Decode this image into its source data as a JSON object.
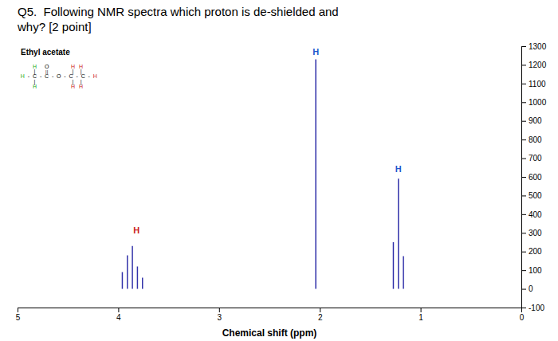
{
  "chart_data": {
    "type": "stem",
    "title": [
      "Q5.  Following NMR spectra which proton is de-shielded and",
      "why? [2 point]"
    ],
    "subtitle": "Ethyl acetate",
    "x_label": "Chemical shift (ppm)",
    "xlim": [
      5,
      0
    ],
    "ylim": [
      -100,
      1300
    ],
    "xticks": [
      5,
      4,
      3,
      2,
      1,
      0
    ],
    "yticks": [
      -100,
      0,
      100,
      200,
      300,
      400,
      500,
      600,
      700,
      800,
      900,
      1000,
      1100,
      1200,
      1300
    ],
    "series": [
      {
        "color": "#3333aa",
        "x": [
          3.76,
          3.81,
          3.86,
          3.91,
          3.96
        ],
        "values": [
          60,
          120,
          230,
          180,
          90
        ],
        "label": {
          "text": "H",
          "x": 3.82,
          "y": 295,
          "color": "#cc2222"
        }
      },
      {
        "color": "#3333aa",
        "x": [
          2.04
        ],
        "values": [
          1230
        ],
        "label": {
          "text": "H",
          "x": 2.04,
          "y": 1255,
          "color": "#2255cc"
        }
      },
      {
        "color": "#3333aa",
        "x": [
          1.17,
          1.22,
          1.27
        ],
        "values": [
          175,
          590,
          250
        ],
        "label": {
          "text": "H",
          "x": 1.22,
          "y": 625,
          "color": "#2255cc"
        }
      }
    ],
    "annotations": [
      {
        "text": "H",
        "x": 4.83,
        "y": 1190,
        "color": "#22aa22"
      },
      {
        "text": "O",
        "x": 4.71,
        "y": 1190,
        "color": "black"
      },
      {
        "text": "H",
        "x": 4.45,
        "y": 1190,
        "color": "#cc2222"
      },
      {
        "text": "H",
        "x": 4.37,
        "y": 1190,
        "color": "#cc2222"
      },
      {
        "text": "|",
        "x": 4.83,
        "y": 1164,
        "color": "black"
      },
      {
        "text": "||",
        "x": 4.71,
        "y": 1164,
        "color": "black"
      },
      {
        "text": "|",
        "x": 4.45,
        "y": 1164,
        "color": "black"
      },
      {
        "text": "|",
        "x": 4.37,
        "y": 1164,
        "color": "black"
      },
      {
        "text": "H",
        "x": 4.95,
        "y": 1138,
        "color": "#22aa22"
      },
      {
        "text": "-",
        "x": 4.89,
        "y": 1138,
        "color": "black"
      },
      {
        "text": "C",
        "x": 4.83,
        "y": 1138,
        "color": "black"
      },
      {
        "text": "-",
        "x": 4.77,
        "y": 1138,
        "color": "black"
      },
      {
        "text": "C",
        "x": 4.71,
        "y": 1138,
        "color": "black"
      },
      {
        "text": "-",
        "x": 4.65,
        "y": 1138,
        "color": "black"
      },
      {
        "text": "O",
        "x": 4.59,
        "y": 1138,
        "color": "black"
      },
      {
        "text": "-",
        "x": 4.53,
        "y": 1138,
        "color": "black"
      },
      {
        "text": "C",
        "x": 4.47,
        "y": 1138,
        "color": "black"
      },
      {
        "text": "-",
        "x": 4.41,
        "y": 1138,
        "color": "black"
      },
      {
        "text": "C",
        "x": 4.35,
        "y": 1138,
        "color": "black"
      },
      {
        "text": "-",
        "x": 4.29,
        "y": 1138,
        "color": "black"
      },
      {
        "text": "H",
        "x": 4.23,
        "y": 1138,
        "color": "#cc2222"
      },
      {
        "text": "|",
        "x": 4.83,
        "y": 1112,
        "color": "black"
      },
      {
        "text": "|",
        "x": 4.45,
        "y": 1112,
        "color": "black"
      },
      {
        "text": "|",
        "x": 4.37,
        "y": 1112,
        "color": "black"
      },
      {
        "text": "H",
        "x": 4.83,
        "y": 1086,
        "color": "#22aa22"
      },
      {
        "text": "H",
        "x": 4.45,
        "y": 1086,
        "color": "#cc2222"
      },
      {
        "text": "H",
        "x": 4.37,
        "y": 1086,
        "color": "#cc2222"
      }
    ]
  }
}
